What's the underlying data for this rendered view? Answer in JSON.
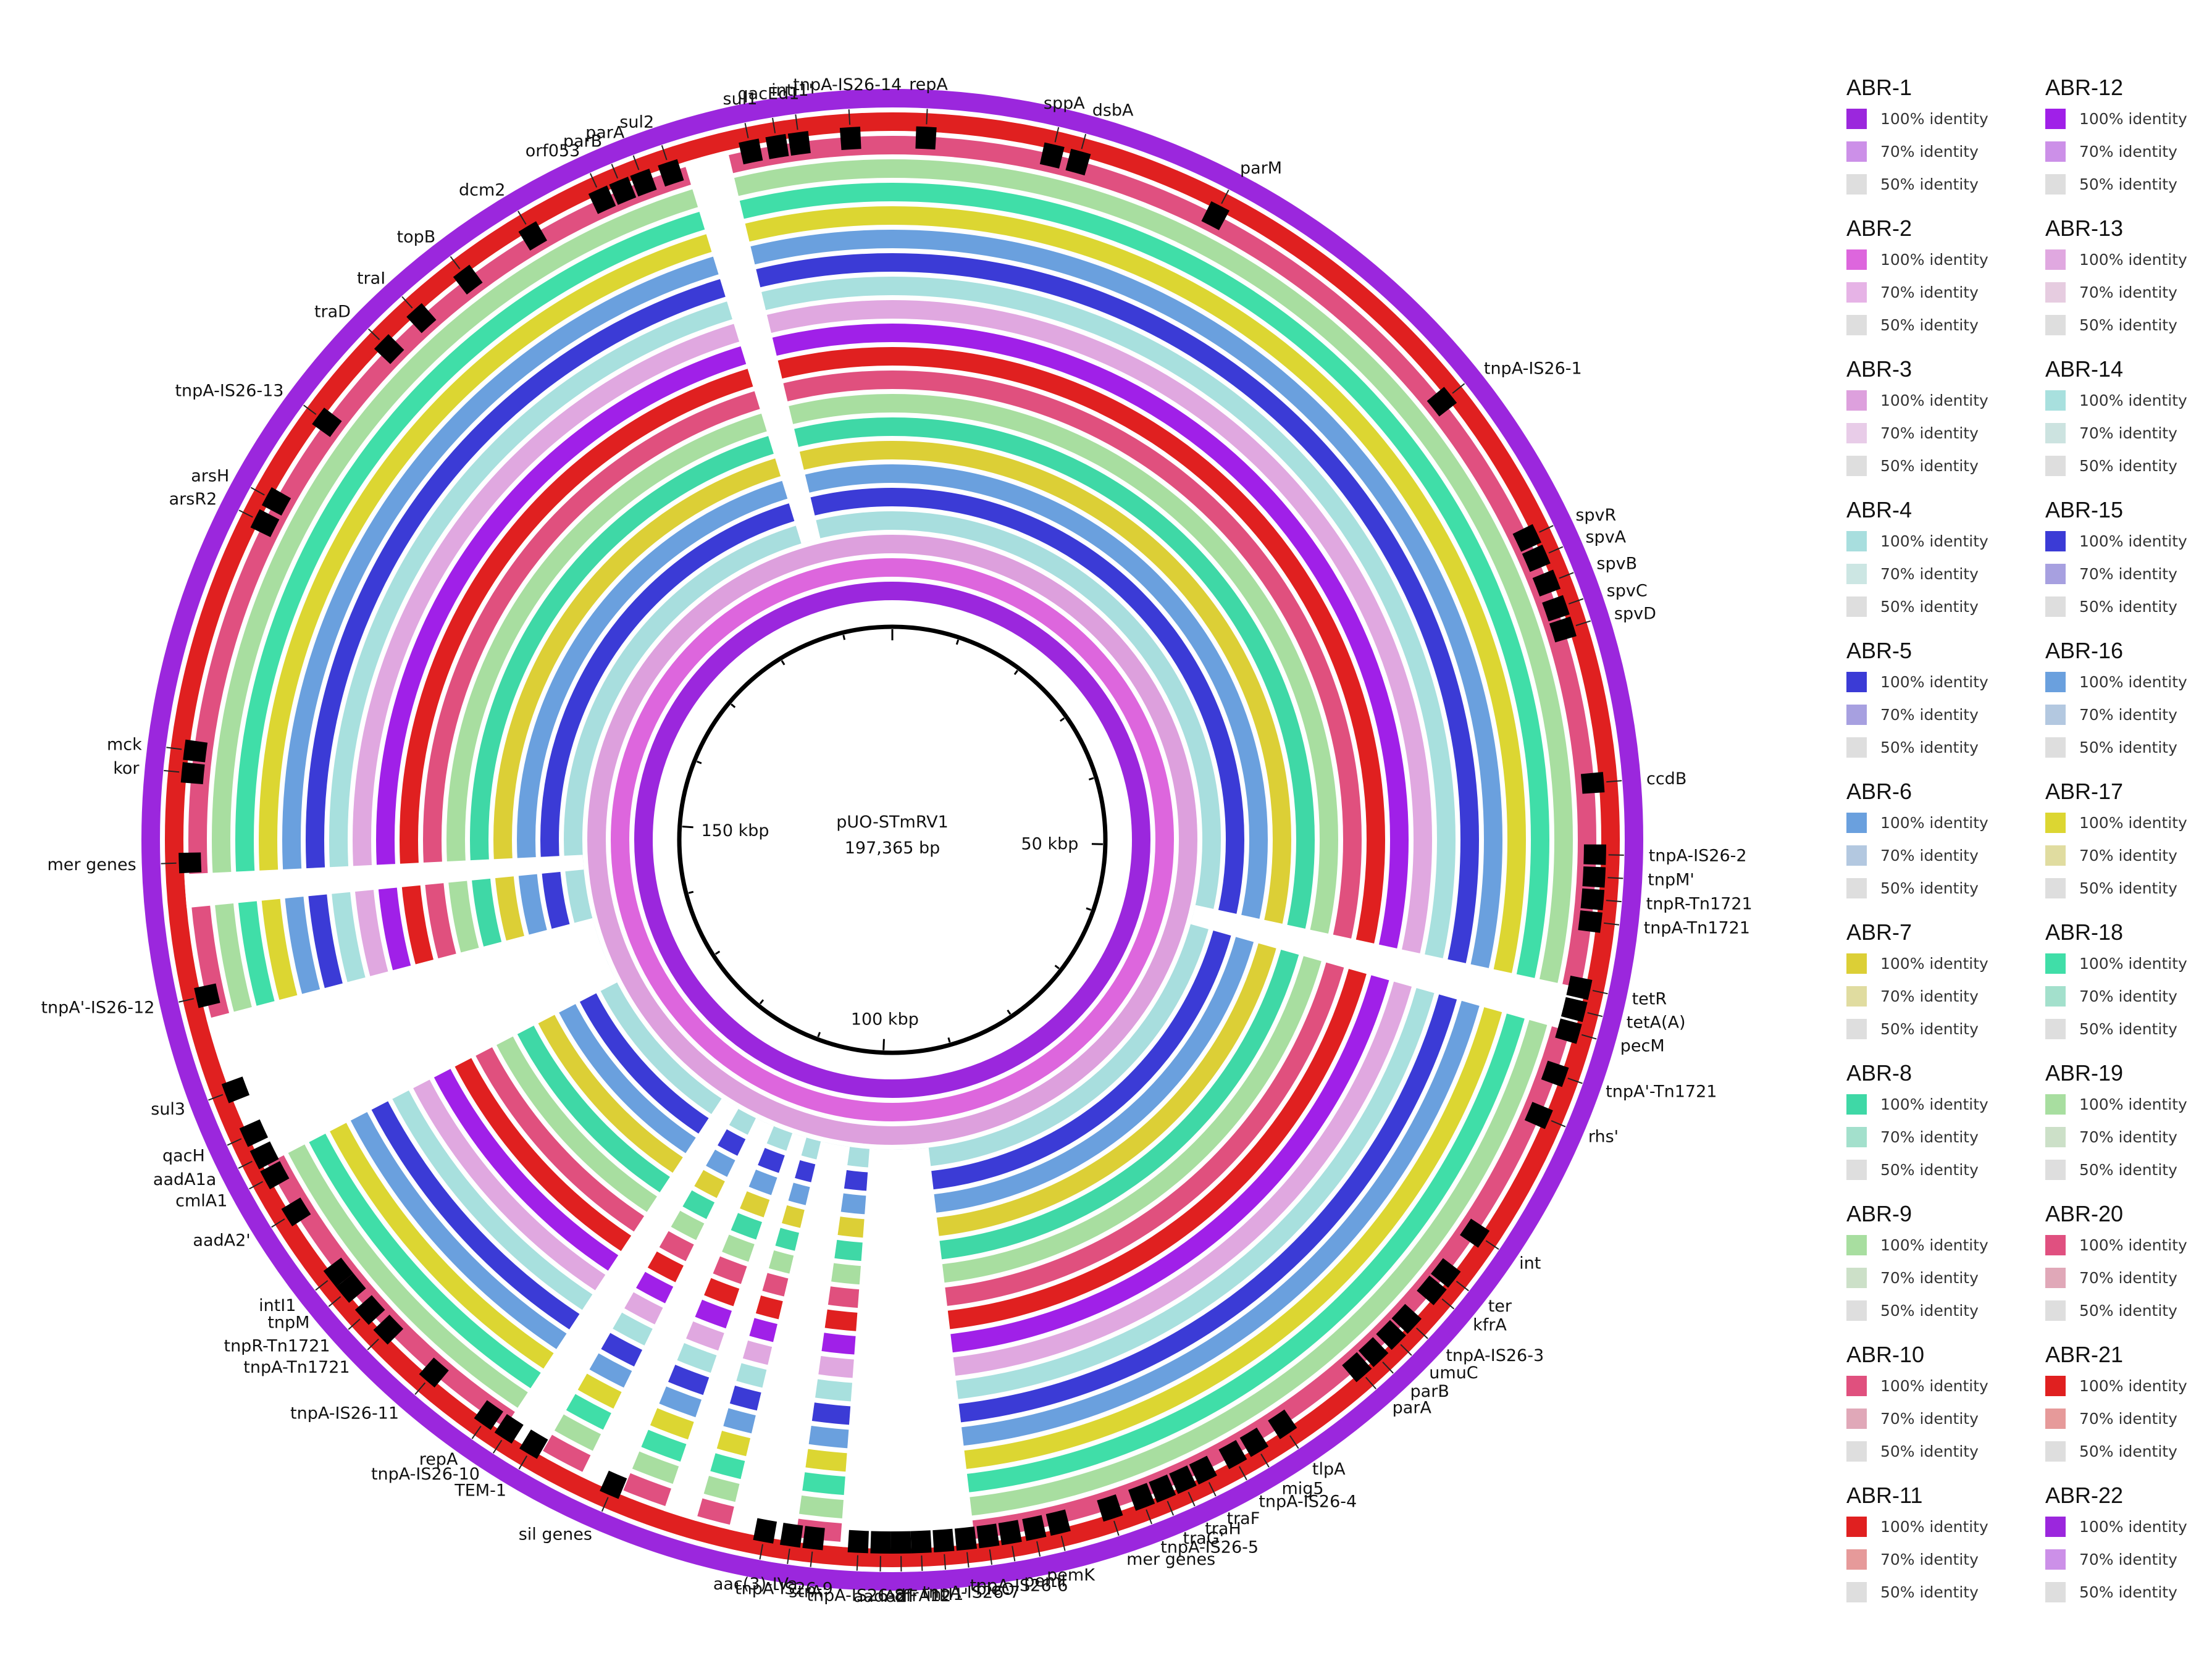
{
  "center": {
    "plasmid_name": "pUO-STmRV1",
    "size": "197,365 bp",
    "tick_labels": [
      "50 kbp",
      "100 kbp",
      "150 kbp"
    ]
  },
  "genome_length_bp": 197365,
  "identity_levels": [
    "100% identity",
    "70% identity",
    "50% identity"
  ],
  "tracks": [
    {
      "name": "ABR-1",
      "color": "#9b27dd"
    },
    {
      "name": "ABR-2",
      "color": "#dd66dd"
    },
    {
      "name": "ABR-3",
      "color": "#dda0dd"
    },
    {
      "name": "ABR-4",
      "color": "#a8dede"
    },
    {
      "name": "ABR-5",
      "color": "#3b3bd6"
    },
    {
      "name": "ABR-6",
      "color": "#6aa0de"
    },
    {
      "name": "ABR-7",
      "color": "#dccf36"
    },
    {
      "name": "ABR-8",
      "color": "#3fd8a6"
    },
    {
      "name": "ABR-9",
      "color": "#a8dea0"
    },
    {
      "name": "ABR-10",
      "color": "#e0507e"
    },
    {
      "name": "ABR-11",
      "color": "#e02020"
    },
    {
      "name": "ABR-12",
      "color": "#a020e8"
    },
    {
      "name": "ABR-13",
      "color": "#e0a8e0"
    },
    {
      "name": "ABR-14",
      "color": "#a8e0de"
    },
    {
      "name": "ABR-15",
      "color": "#3b3bd6"
    },
    {
      "name": "ABR-16",
      "color": "#6aa0de"
    },
    {
      "name": "ABR-17",
      "color": "#dcd632"
    },
    {
      "name": "ABR-18",
      "color": "#40dea8"
    },
    {
      "name": "ABR-19",
      "color": "#a8dea0"
    },
    {
      "name": "ABR-20",
      "color": "#e05080"
    },
    {
      "name": "ABR-21",
      "color": "#e02020"
    },
    {
      "name": "ABR-22",
      "color": "#9b27dd"
    }
  ],
  "gap_regions_kbp": [
    [
      95,
      101
    ],
    [
      103,
      106
    ],
    [
      107.5,
      109
    ],
    [
      111,
      113
    ],
    [
      115,
      117
    ],
    [
      133,
      140
    ],
    [
      56,
      58
    ],
    [
      188,
      190
    ],
    [
      145,
      146.5
    ]
  ],
  "genes": [
    {
      "label": "repA",
      "pos_kbp": 1.5
    },
    {
      "label": "tnpA-IS26-14",
      "pos_kbp": 195.5
    },
    {
      "label": "intI1'",
      "pos_kbp": 193.2
    },
    {
      "label": "qacEd1",
      "pos_kbp": 192.2
    },
    {
      "label": "sul1",
      "pos_kbp": 191.0
    },
    {
      "label": "sul2",
      "pos_kbp": 187.3
    },
    {
      "label": "parA",
      "pos_kbp": 186.0
    },
    {
      "label": "parB",
      "pos_kbp": 185.0
    },
    {
      "label": "orf053",
      "pos_kbp": 184.0
    },
    {
      "label": "dcm2",
      "pos_kbp": 180.5
    },
    {
      "label": "topB",
      "pos_kbp": 177.0
    },
    {
      "label": "traI",
      "pos_kbp": 174.3
    },
    {
      "label": "traD",
      "pos_kbp": 172.3
    },
    {
      "label": "tnpA-IS26-13",
      "pos_kbp": 168.0
    },
    {
      "label": "arsH",
      "pos_kbp": 163.8
    },
    {
      "label": "arsR2",
      "pos_kbp": 162.7
    },
    {
      "label": "mck",
      "pos_kbp": 152.0
    },
    {
      "label": "kor",
      "pos_kbp": 151.0
    },
    {
      "label": "mer genes",
      "pos_kbp": 147.0
    },
    {
      "label": "tnpA'-IS26-12",
      "pos_kbp": 141.0
    },
    {
      "label": "sul3",
      "pos_kbp": 136.6
    },
    {
      "label": "qacH",
      "pos_kbp": 134.5
    },
    {
      "label": "aadA1a",
      "pos_kbp": 133.4
    },
    {
      "label": "cmlA1",
      "pos_kbp": 132.4
    },
    {
      "label": "aadA2'",
      "pos_kbp": 130.5
    },
    {
      "label": "intI1",
      "pos_kbp": 127.2
    },
    {
      "label": "tnpM",
      "pos_kbp": 126.3
    },
    {
      "label": "tnpR-Tn1721",
      "pos_kbp": 125.0
    },
    {
      "label": "tnpA-Tn1721",
      "pos_kbp": 123.8
    },
    {
      "label": "tnpA-IS26-11",
      "pos_kbp": 121.0
    },
    {
      "label": "repA",
      "pos_kbp": 117.9
    },
    {
      "label": "tnpA-IS26-10",
      "pos_kbp": 116.8
    },
    {
      "label": "TEM-1",
      "pos_kbp": 115.5
    },
    {
      "label": "sil genes",
      "pos_kbp": 111.5
    },
    {
      "label": "aac(3)-IVa",
      "pos_kbp": 104.4
    },
    {
      "label": "tnpA-IS26-9",
      "pos_kbp": 103.2
    },
    {
      "label": "strA'",
      "pos_kbp": 102.2
    },
    {
      "label": "tnpA-IS26-8",
      "pos_kbp": 100.2
    },
    {
      "label": "aadA2",
      "pos_kbp": 99.2
    },
    {
      "label": "orfF",
      "pos_kbp": 98.3
    },
    {
      "label": "dfrA12",
      "pos_kbp": 97.4
    },
    {
      "label": "intI1'",
      "pos_kbp": 96.4
    },
    {
      "label": "tnpA-IS26-7",
      "pos_kbp": 95.4
    },
    {
      "label": "bleO",
      "pos_kbp": 94.4
    },
    {
      "label": "tnpA-IS26-6",
      "pos_kbp": 93.4
    },
    {
      "label": "pemI",
      "pos_kbp": 92.3
    },
    {
      "label": "pemK",
      "pos_kbp": 91.2
    },
    {
      "label": "mer genes",
      "pos_kbp": 88.8
    },
    {
      "label": "tnpA-IS26-5",
      "pos_kbp": 87.3
    },
    {
      "label": "traG'",
      "pos_kbp": 86.3
    },
    {
      "label": "traH",
      "pos_kbp": 85.3
    },
    {
      "label": "traF",
      "pos_kbp": 84.3
    },
    {
      "label": "tnpA-IS26-4",
      "pos_kbp": 82.8
    },
    {
      "label": "mig5",
      "pos_kbp": 81.7
    },
    {
      "label": "tlpA",
      "pos_kbp": 80.2
    },
    {
      "label": "parA",
      "pos_kbp": 76.0
    },
    {
      "label": "parB",
      "pos_kbp": 75.0
    },
    {
      "label": "umuC",
      "pos_kbp": 73.9
    },
    {
      "label": "tnpA-IS26-3",
      "pos_kbp": 72.9
    },
    {
      "label": "kfrA",
      "pos_kbp": 71.2
    },
    {
      "label": "ter",
      "pos_kbp": 70.2
    },
    {
      "label": "int",
      "pos_kbp": 68.0
    },
    {
      "label": "rhs'",
      "pos_kbp": 62.0
    },
    {
      "label": "tnpA'-Tn1721",
      "pos_kbp": 60.0
    },
    {
      "label": "pecM",
      "pos_kbp": 58.0
    },
    {
      "label": "tetA(A)",
      "pos_kbp": 57.0
    },
    {
      "label": "tetR",
      "pos_kbp": 56.0
    },
    {
      "label": "tnpA-Tn1721",
      "pos_kbp": 53.0
    },
    {
      "label": "tnpR-Tn1721",
      "pos_kbp": 52.0
    },
    {
      "label": "tnpM'",
      "pos_kbp": 51.0
    },
    {
      "label": "tnpA-IS26-2",
      "pos_kbp": 50.0
    },
    {
      "label": "ccdB",
      "pos_kbp": 46.8
    },
    {
      "label": "spvD",
      "pos_kbp": 39.8
    },
    {
      "label": "spvC",
      "pos_kbp": 38.8
    },
    {
      "label": "spvB",
      "pos_kbp": 37.6
    },
    {
      "label": "spvA",
      "pos_kbp": 36.4
    },
    {
      "label": "spvR",
      "pos_kbp": 35.4
    },
    {
      "label": "tnpA-IS26-1",
      "pos_kbp": 28.2
    },
    {
      "label": "parM",
      "pos_kbp": 15.0
    },
    {
      "label": "dsbA",
      "pos_kbp": 8.4
    },
    {
      "label": "sppA",
      "pos_kbp": 7.2
    }
  ],
  "legend": {
    "groups": [
      {
        "title": "ABR-1",
        "colors": [
          "#9b27dd",
          "#cc90e8",
          "#dedede"
        ]
      },
      {
        "title": "ABR-2",
        "colors": [
          "#dd66dd",
          "#e6b3e6",
          "#dedede"
        ]
      },
      {
        "title": "ABR-3",
        "colors": [
          "#dda0dd",
          "#e8cce8",
          "#dedede"
        ]
      },
      {
        "title": "ABR-4",
        "colors": [
          "#a8dede",
          "#cce6e3",
          "#dedede"
        ]
      },
      {
        "title": "ABR-5",
        "colors": [
          "#3b3bd6",
          "#a7a0e0",
          "#dedede"
        ]
      },
      {
        "title": "ABR-6",
        "colors": [
          "#6aa0de",
          "#b3c8e0",
          "#dedede"
        ]
      },
      {
        "title": "ABR-7",
        "colors": [
          "#dccf36",
          "#e0dca0",
          "#dedede"
        ]
      },
      {
        "title": "ABR-8",
        "colors": [
          "#3fd8a6",
          "#a3e0cc",
          "#dedede"
        ]
      },
      {
        "title": "ABR-9",
        "colors": [
          "#a8dea0",
          "#cce0c8",
          "#dedede"
        ]
      },
      {
        "title": "ABR-10",
        "colors": [
          "#e0507e",
          "#e0a8b8",
          "#dedede"
        ]
      },
      {
        "title": "ABR-11",
        "colors": [
          "#e02020",
          "#e69a9a",
          "#dedede"
        ]
      },
      {
        "title": "ABR-12",
        "colors": [
          "#a020e8",
          "#cc90e8",
          "#dedede"
        ]
      },
      {
        "title": "ABR-13",
        "colors": [
          "#e0a8e0",
          "#e6cce0",
          "#dedede"
        ]
      },
      {
        "title": "ABR-14",
        "colors": [
          "#a8e0de",
          "#cce3e0",
          "#dedede"
        ]
      },
      {
        "title": "ABR-15",
        "colors": [
          "#3b3bd6",
          "#a7a0e0",
          "#dedede"
        ]
      },
      {
        "title": "ABR-16",
        "colors": [
          "#6aa0de",
          "#b3c8e0",
          "#dedede"
        ]
      },
      {
        "title": "ABR-17",
        "colors": [
          "#dcd632",
          "#e0dca0",
          "#dedede"
        ]
      },
      {
        "title": "ABR-18",
        "colors": [
          "#40dea8",
          "#a3e0cc",
          "#dedede"
        ]
      },
      {
        "title": "ABR-19",
        "colors": [
          "#a8dea0",
          "#cce0c8",
          "#dedede"
        ]
      },
      {
        "title": "ABR-20",
        "colors": [
          "#e05080",
          "#e0a8b8",
          "#dedede"
        ]
      },
      {
        "title": "ABR-21",
        "colors": [
          "#e02020",
          "#e69a9a",
          "#dedede"
        ]
      },
      {
        "title": "ABR-22",
        "colors": [
          "#9b27dd",
          "#cc90e8",
          "#dedede"
        ]
      }
    ]
  }
}
